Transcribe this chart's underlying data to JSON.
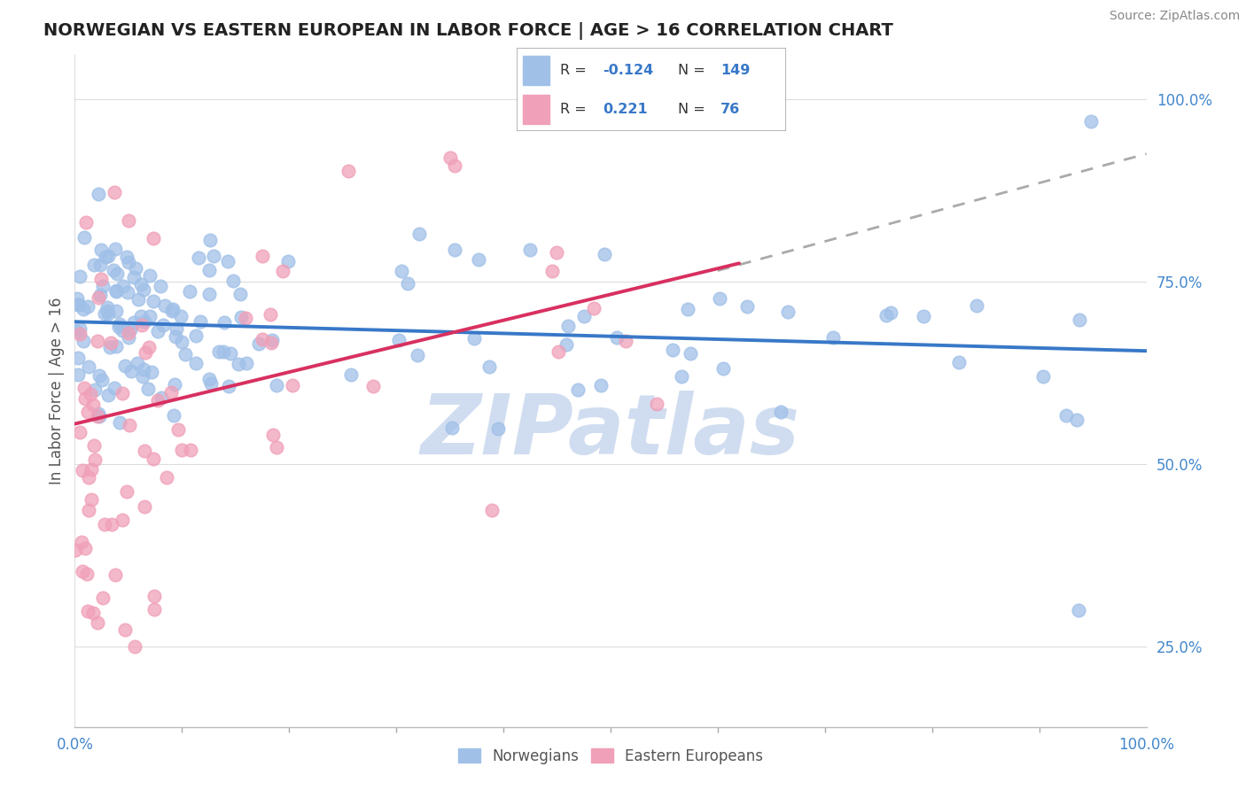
{
  "title": "NORWEGIAN VS EASTERN EUROPEAN IN LABOR FORCE | AGE > 16 CORRELATION CHART",
  "source": "Source: ZipAtlas.com",
  "ylabel": "In Labor Force | Age > 16",
  "legend_blue_r": "-0.124",
  "legend_blue_n": "149",
  "legend_pink_r": "0.221",
  "legend_pink_n": "76",
  "blue_scatter_color": "#a0c0e8",
  "pink_scatter_color": "#f0a0b8",
  "blue_line_color": "#3878c8",
  "pink_line_color": "#d83060",
  "gray_dash_color": "#aaaaaa",
  "bg_color": "#ffffff",
  "grid_color": "#dddddd",
  "blue_trend_x": [
    0.0,
    1.0
  ],
  "blue_trend_y": [
    0.695,
    0.655
  ],
  "pink_trend_x": [
    0.0,
    0.62
  ],
  "pink_trend_y": [
    0.555,
    0.775
  ],
  "gray_trend_x": [
    0.6,
    1.0
  ],
  "gray_trend_y": [
    0.765,
    0.925
  ],
  "xlim": [
    0.0,
    1.0
  ],
  "ylim": [
    0.14,
    1.06
  ],
  "ytick_vals": [
    0.25,
    0.5,
    0.75,
    1.0
  ],
  "ytick_labels": [
    "25.0%",
    "50.0%",
    "75.0%",
    "100.0%"
  ],
  "xtick_vals": [
    0.0,
    1.0
  ],
  "xtick_labels": [
    "0.0%",
    "100.0%"
  ],
  "watermark_text": "ZIPatlas",
  "watermark_color": "#d0ddf0",
  "title_fontsize": 14,
  "axis_label_fontsize": 12,
  "tick_fontsize": 12,
  "source_fontsize": 10,
  "legend_fontsize": 12
}
